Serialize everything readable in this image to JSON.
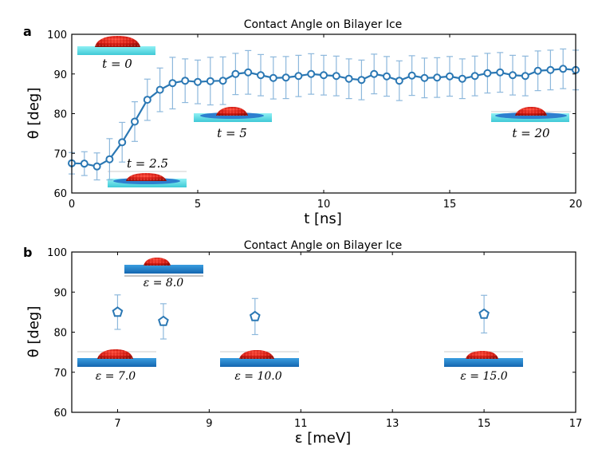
{
  "chart_data": [
    {
      "panel_label": "a",
      "type": "line",
      "title": "Contact Angle on Bilayer Ice",
      "xlabel": "t [ns]",
      "ylabel": "θ [deg]",
      "xlim": [
        0,
        20
      ],
      "ylim": [
        60,
        100
      ],
      "xticks": [
        "0",
        "5",
        "10",
        "15",
        "20"
      ],
      "yticks": [
        "60",
        "70",
        "80",
        "90",
        "100"
      ],
      "color": "#2b78b4",
      "errorbar_color": "#8db8dc",
      "series": [
        {
          "x": [
            0,
            0.5,
            1,
            1.5,
            2,
            2.5,
            3,
            3.5,
            4,
            4.5,
            5,
            5.5,
            6,
            6.5,
            7,
            7.5,
            8,
            8.5,
            9,
            9.5,
            10,
            10.5,
            11,
            11.5,
            12,
            12.5,
            13,
            13.5,
            14,
            14.5,
            15,
            15.5,
            16,
            16.5,
            17,
            17.5,
            18,
            18.5,
            19,
            19.5,
            20
          ],
          "y": [
            67.5,
            67.4,
            66.7,
            68.5,
            72.8,
            78,
            83.5,
            86,
            87.7,
            88.3,
            88,
            88.2,
            88.3,
            90,
            90.4,
            89.7,
            89,
            89.1,
            89.5,
            90,
            89.7,
            89.5,
            88.8,
            88.5,
            90,
            89.4,
            88.3,
            89.6,
            89,
            89.1,
            89.4,
            88.8,
            89.5,
            90.2,
            90.4,
            89.7,
            89.5,
            90.8,
            91,
            91.3,
            91
          ],
          "yerr": [
            2.7,
            3,
            3.4,
            5.2,
            5,
            5,
            5.2,
            5.5,
            6.5,
            5.5,
            5.5,
            6,
            6,
            5.2,
            5.5,
            5.2,
            5.3,
            5.3,
            5.2,
            5.1,
            5,
            5,
            5,
            5,
            5,
            5,
            5,
            5,
            5,
            5,
            5,
            5,
            5,
            5,
            5,
            5,
            5,
            5,
            5,
            5,
            5
          ]
        }
      ],
      "annotations": [
        "t = 0",
        "t = 2.5",
        "t = 5",
        "t = 20"
      ]
    },
    {
      "panel_label": "b",
      "type": "scatter",
      "title": "Contact Angle on Bilayer Ice",
      "xlabel": "ε [meV]",
      "ylabel": "θ [deg]",
      "xlim": [
        6,
        17
      ],
      "ylim": [
        60,
        100
      ],
      "xticks": [
        "7",
        "9",
        "11",
        "13",
        "15",
        "17"
      ],
      "yticks": [
        "60",
        "70",
        "80",
        "90",
        "100"
      ],
      "color": "#2b78b4",
      "errorbar_color": "#8db8dc",
      "series": [
        {
          "x": [
            7,
            8,
            10,
            15
          ],
          "y": [
            85,
            82.7,
            83.9,
            84.5
          ],
          "yerr": [
            4.3,
            4.4,
            4.5,
            4.7
          ]
        }
      ],
      "annotations": [
        "ε = 7.0",
        "ε = 8.0",
        "ε = 10.0",
        "ε = 15.0"
      ]
    }
  ]
}
